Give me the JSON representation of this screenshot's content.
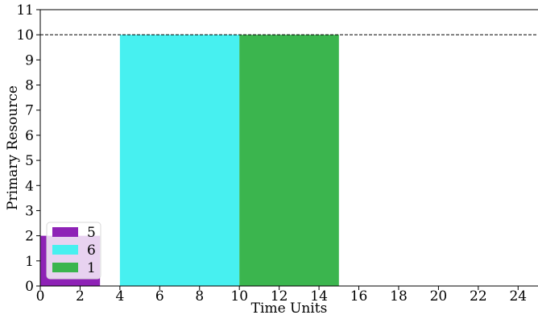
{
  "chart_data": {
    "type": "bar",
    "xlabel": "Time Units",
    "ylabel": "Primary Resource",
    "xlim": [
      0,
      25
    ],
    "ylim": [
      0,
      11
    ],
    "xticks": [
      0,
      2,
      4,
      6,
      8,
      10,
      12,
      14,
      16,
      18,
      20,
      22,
      24
    ],
    "yticks": [
      0,
      1,
      2,
      3,
      4,
      5,
      6,
      7,
      8,
      9,
      10,
      11
    ],
    "capacity_line": 10,
    "grid": false,
    "legend_position": "bottom-left",
    "bars": [
      {
        "name": "5",
        "start": 0,
        "end": 3,
        "value": 2,
        "color": "#8e22b6"
      },
      {
        "name": "6",
        "start": 4,
        "end": 10,
        "value": 10,
        "color": "#47f0f0"
      },
      {
        "name": "1",
        "start": 10,
        "end": 15,
        "value": 10,
        "color": "#3bb54e"
      }
    ]
  }
}
